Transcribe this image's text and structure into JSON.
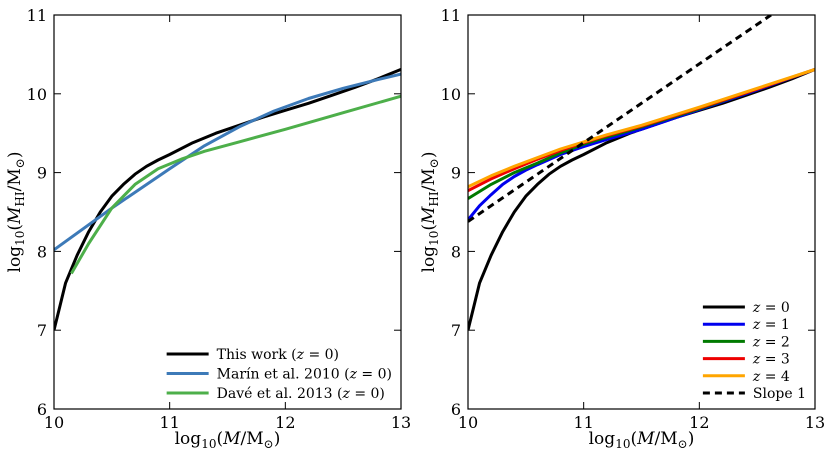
{
  "chart_data": [
    {
      "type": "line",
      "panel": "left",
      "xlabel": "log10(M/M⊙)",
      "ylabel": "log10(MHI/M⊙)",
      "xlim": [
        10,
        13
      ],
      "ylim": [
        6,
        11
      ],
      "xticks": [
        "10",
        "11",
        "12",
        "13"
      ],
      "yticks": [
        "6",
        "7",
        "8",
        "9",
        "10",
        "11"
      ],
      "legend_position": "bottom-right",
      "series": [
        {
          "name": "This work (z = 0)",
          "color": "#000000",
          "style": "solid",
          "x": [
            10.0,
            10.05,
            10.1,
            10.2,
            10.3,
            10.4,
            10.5,
            10.6,
            10.7,
            10.8,
            10.9,
            11.0,
            11.2,
            11.4,
            11.6,
            11.8,
            12.0,
            12.2,
            12.4,
            12.6,
            12.8,
            13.0
          ],
          "y": [
            7.0,
            7.3,
            7.6,
            7.95,
            8.25,
            8.5,
            8.7,
            8.85,
            8.98,
            9.08,
            9.16,
            9.23,
            9.38,
            9.5,
            9.6,
            9.7,
            9.79,
            9.88,
            9.98,
            10.08,
            10.19,
            10.31
          ]
        },
        {
          "name": "Marín et al. 2010 (z = 0)",
          "color": "#3d7ab8",
          "style": "solid",
          "x": [
            10.0,
            10.5,
            11.0,
            11.3,
            11.6,
            11.9,
            12.2,
            12.5,
            12.8,
            13.0
          ],
          "y": [
            8.02,
            8.55,
            9.05,
            9.34,
            9.58,
            9.78,
            9.94,
            10.07,
            10.18,
            10.25
          ]
        },
        {
          "name": "Davé et al. 2013 (z = 0)",
          "color": "#4daf4a",
          "style": "solid",
          "x": [
            10.15,
            10.3,
            10.5,
            10.7,
            10.9,
            11.1,
            11.3,
            11.6,
            12.0,
            12.5,
            13.0
          ],
          "y": [
            7.72,
            8.1,
            8.55,
            8.85,
            9.05,
            9.17,
            9.27,
            9.39,
            9.55,
            9.76,
            9.97
          ]
        }
      ]
    },
    {
      "type": "line",
      "panel": "right",
      "xlabel": "log10(M/M⊙)",
      "ylabel": "log10(MHI/M⊙)",
      "xlim": [
        10,
        13
      ],
      "ylim": [
        6,
        11
      ],
      "xticks": [
        "10",
        "11",
        "12",
        "13"
      ],
      "yticks": [
        "6",
        "7",
        "8",
        "9",
        "10",
        "11"
      ],
      "legend_position": "bottom-right",
      "series": [
        {
          "name": "z = 0",
          "color": "#000000",
          "style": "solid",
          "x": [
            10.0,
            10.05,
            10.1,
            10.2,
            10.3,
            10.4,
            10.5,
            10.6,
            10.7,
            10.8,
            10.9,
            11.0,
            11.2,
            11.4,
            11.6,
            11.8,
            12.0,
            12.2,
            12.4,
            12.6,
            12.8,
            13.0
          ],
          "y": [
            7.0,
            7.3,
            7.6,
            7.95,
            8.25,
            8.5,
            8.7,
            8.85,
            8.98,
            9.08,
            9.16,
            9.23,
            9.38,
            9.5,
            9.6,
            9.7,
            9.79,
            9.88,
            9.98,
            10.08,
            10.19,
            10.31
          ]
        },
        {
          "name": "z = 1",
          "color": "#0000ee",
          "style": "solid",
          "x": [
            10.0,
            10.1,
            10.2,
            10.3,
            10.4,
            10.5,
            10.6,
            10.8,
            11.0,
            11.2,
            11.5,
            12.0,
            12.5,
            13.0
          ],
          "y": [
            8.4,
            8.58,
            8.72,
            8.85,
            8.95,
            9.03,
            9.1,
            9.23,
            9.33,
            9.42,
            9.55,
            9.8,
            10.05,
            10.31
          ]
        },
        {
          "name": "z = 2",
          "color": "#007a00",
          "style": "solid",
          "x": [
            10.0,
            10.2,
            10.4,
            10.6,
            10.8,
            11.0,
            11.2,
            11.5,
            12.0,
            12.5,
            13.0
          ],
          "y": [
            8.67,
            8.85,
            9.0,
            9.12,
            9.25,
            9.36,
            9.45,
            9.58,
            9.81,
            10.06,
            10.31
          ]
        },
        {
          "name": "z = 3",
          "color": "#ee0000",
          "style": "solid",
          "x": [
            10.0,
            10.2,
            10.4,
            10.6,
            10.8,
            11.0,
            11.2,
            11.5,
            12.0,
            12.5,
            13.0
          ],
          "y": [
            8.77,
            8.92,
            9.05,
            9.17,
            9.28,
            9.38,
            9.47,
            9.59,
            9.82,
            10.06,
            10.31
          ]
        },
        {
          "name": "z = 4",
          "color": "#ffa500",
          "style": "solid",
          "x": [
            10.0,
            10.2,
            10.4,
            10.6,
            10.8,
            11.0,
            11.2,
            11.5,
            12.0,
            12.5,
            13.0
          ],
          "y": [
            8.82,
            8.96,
            9.08,
            9.19,
            9.3,
            9.39,
            9.48,
            9.6,
            9.83,
            10.07,
            10.31
          ]
        },
        {
          "name": "Slope 1",
          "color": "#000000",
          "style": "dashed",
          "x": [
            10.0,
            12.62
          ],
          "y": [
            8.38,
            11.0
          ]
        }
      ]
    }
  ]
}
